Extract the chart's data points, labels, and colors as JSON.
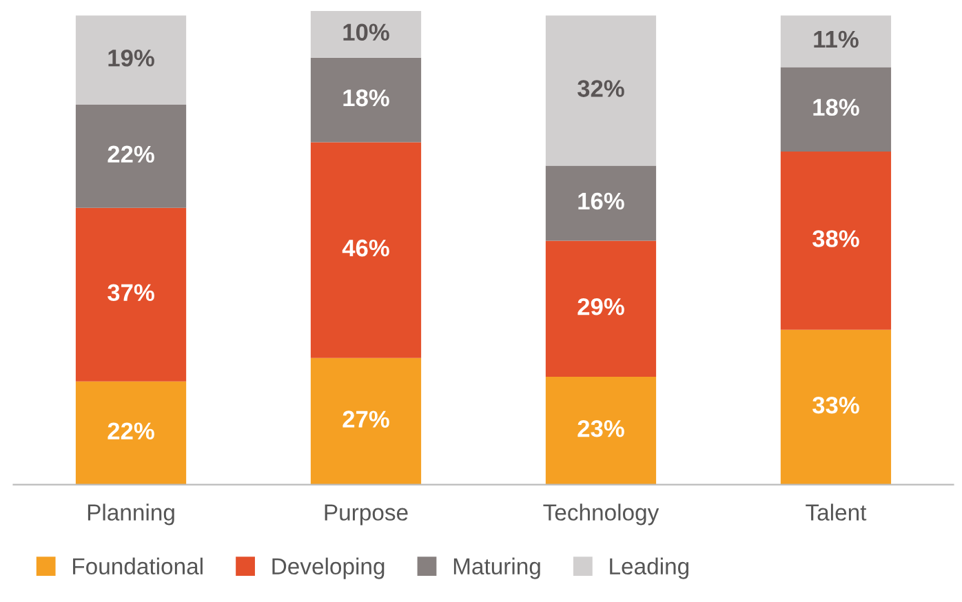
{
  "chart_data": {
    "type": "bar",
    "stacked": true,
    "categories": [
      "Planning",
      "Purpose",
      "Technology",
      "Talent"
    ],
    "series": [
      {
        "name": "Foundational",
        "color": "#f5a023",
        "values": [
          22,
          27,
          23,
          33
        ],
        "value_labels": [
          "22%",
          "27%",
          "23%",
          "33%"
        ]
      },
      {
        "name": "Developing",
        "color": "#e4502b",
        "values": [
          37,
          46,
          29,
          38
        ],
        "value_labels": [
          "37%",
          "46%",
          "29%",
          "38%"
        ]
      },
      {
        "name": "Maturing",
        "color": "#87807f",
        "values": [
          22,
          18,
          16,
          18
        ],
        "value_labels": [
          "22%",
          "18%",
          "16%",
          "18%"
        ]
      },
      {
        "name": "Leading",
        "color": "#d1cfcf",
        "values": [
          19,
          10,
          32,
          11
        ],
        "value_labels": [
          "19%",
          "10%",
          "32%",
          "11%"
        ]
      }
    ],
    "legend": "bottom",
    "grid": false
  }
}
